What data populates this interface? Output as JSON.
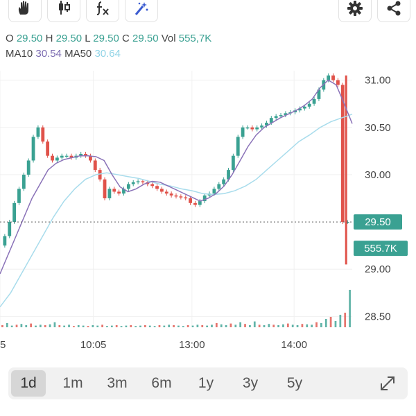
{
  "toolbar": {
    "left_tools": [
      "hand-icon",
      "candlestick-icon",
      "indicator-fx-icon",
      "magic-draw-icon"
    ],
    "right_tools": [
      "gear-icon",
      "share-icon"
    ]
  },
  "legend": {
    "o_label": "O",
    "o_value": "29.50",
    "h_label": "H",
    "h_value": "29.50",
    "l_label": "L",
    "l_value": "29.50",
    "c_label": "C",
    "c_value": "29.50",
    "vol_label": "Vol",
    "vol_value": "555,7K",
    "ma10_label": "MA10",
    "ma10_value": "30.54",
    "ma50_label": "MA50",
    "ma50_value": "30.64"
  },
  "colors": {
    "up": "#3aa192",
    "down": "#e0524a",
    "ma10": "#8a72b8",
    "ma50": "#a8dcec",
    "badge": "#3aa192",
    "grid": "#f0f0f0",
    "axis_text": "#444444"
  },
  "chart_data": {
    "type": "candlestick",
    "y_ticks": [
      "31.00",
      "30.50",
      "30.00",
      "29.00",
      "28.50"
    ],
    "ylim": [
      28.4,
      31.1
    ],
    "x_ticks": [
      "5",
      "10:05",
      "13:00",
      "14:00"
    ],
    "x_tick_pos": [
      0.0,
      0.265,
      0.545,
      0.835
    ],
    "last_price_label": "29.50",
    "last_price": 29.5,
    "last_volume_label": "555.7K",
    "close_series": [
      29.25,
      29.35,
      29.5,
      29.7,
      29.85,
      30.0,
      30.15,
      30.4,
      30.5,
      30.35,
      30.2,
      30.15,
      30.18,
      30.2,
      30.2,
      30.18,
      30.2,
      30.22,
      30.2,
      30.15,
      30.05,
      29.95,
      29.75,
      29.85,
      29.82,
      29.8,
      29.85,
      29.9,
      29.92,
      29.93,
      29.92,
      29.9,
      29.88,
      29.85,
      29.82,
      29.8,
      29.78,
      29.77,
      29.76,
      29.75,
      29.7,
      29.68,
      29.72,
      29.78,
      29.8,
      29.85,
      29.9,
      29.95,
      30.05,
      30.2,
      30.4,
      30.5,
      30.5,
      30.48,
      30.5,
      30.52,
      30.55,
      30.6,
      30.62,
      30.63,
      30.65,
      30.66,
      30.68,
      30.7,
      30.72,
      30.75,
      30.8,
      30.9,
      31.0,
      31.05,
      31.0,
      30.95,
      29.5,
      29.5
    ],
    "ma10": [
      28.95,
      29.15,
      29.35,
      29.55,
      29.75,
      29.9,
      30.05,
      30.12,
      30.16,
      30.18,
      30.2,
      30.2,
      30.19,
      30.15,
      30.0,
      29.87,
      29.82,
      29.85,
      29.9,
      29.93,
      29.92,
      29.88,
      29.84,
      29.8,
      29.76,
      29.72,
      29.75,
      29.8,
      29.88,
      30.0,
      30.15,
      30.3,
      30.42,
      30.5,
      30.55,
      30.6,
      30.64,
      30.68,
      30.73,
      30.8,
      30.92,
      31.0,
      30.95,
      30.75,
      30.54
    ],
    "ma50": [
      28.6,
      28.75,
      28.95,
      29.15,
      29.35,
      29.55,
      29.72,
      29.85,
      29.95,
      30.0,
      30.02,
      30.0,
      29.98,
      29.96,
      29.93,
      29.9,
      29.88,
      29.85,
      29.83,
      29.8,
      29.79,
      29.8,
      29.83,
      29.88,
      29.95,
      30.05,
      30.15,
      30.25,
      30.35,
      30.42,
      30.5,
      30.56,
      30.6,
      30.64
    ],
    "volume": [
      0.05,
      0.1,
      0.04,
      0.06,
      0.08,
      0.05,
      0.09,
      0.04,
      0.06,
      0.05,
      0.07,
      0.12,
      0.05,
      0.04,
      0.06,
      0.03,
      0.05,
      0.04,
      0.03,
      0.05,
      0.04,
      0.06,
      0.03,
      0.04,
      0.05,
      0.03,
      0.04,
      0.05,
      0.03,
      0.04,
      0.05,
      0.04,
      0.03,
      0.05,
      0.04,
      0.06,
      0.05,
      0.04,
      0.03,
      0.05,
      0.04,
      0.06,
      0.05,
      0.04,
      0.06,
      0.1,
      0.07,
      0.05,
      0.09,
      0.06,
      0.12,
      0.08,
      0.05,
      0.14,
      0.06,
      0.05,
      0.08,
      0.06,
      0.05,
      0.07,
      0.09,
      0.06,
      0.05,
      0.08,
      0.07,
      0.06,
      0.12,
      0.1,
      0.2,
      0.25,
      0.15,
      0.3,
      0.35,
      0.9
    ]
  },
  "periods": [
    "1d",
    "1m",
    "3m",
    "6m",
    "1y",
    "3y",
    "5y"
  ],
  "active_period": "1d"
}
